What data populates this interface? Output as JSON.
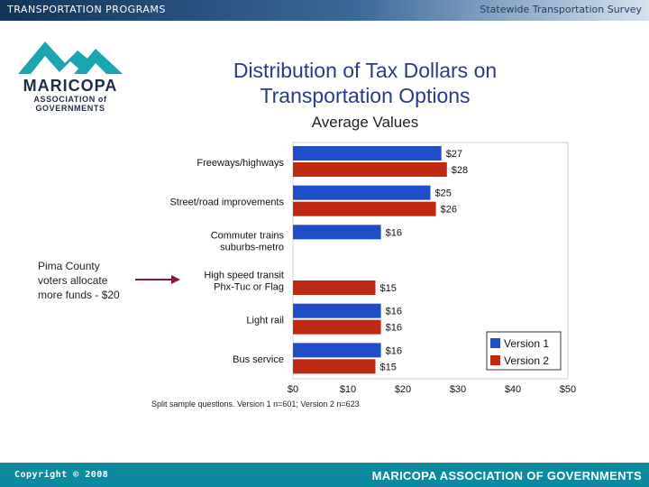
{
  "header": {
    "left": "TRANSPORTATION PROGRAMS",
    "right": "Statewide Transportation Survey"
  },
  "footer": {
    "copyright": "Copyright © 2008",
    "org": "MARICOPA ASSOCIATION OF GOVERNMENTS"
  },
  "logo": {
    "line1": "MARICOPA",
    "line2": "ASSOCIATION of",
    "line3": "GOVERNMENTS"
  },
  "note": "Pima County voters allocate more funds - $20",
  "footnote": "Split sample questions. Version 1 n=601; Version 2 n=623",
  "colors": {
    "version1": "#1f4fc8",
    "version2": "#c02a12"
  },
  "chart_data": {
    "type": "bar",
    "orientation": "horizontal",
    "title": "Distribution of Tax Dollars on Transportation Options",
    "subtitle": "Average Values",
    "categories": [
      [
        "Freeways/highways"
      ],
      [
        "Street/road improvements"
      ],
      [
        "Commuter trains",
        "suburbs-metro"
      ],
      [
        "High speed transit",
        "Phx-Tuc or Flag"
      ],
      [
        "Light rail"
      ],
      [
        "Bus service"
      ]
    ],
    "series": [
      {
        "name": "Version 1",
        "values": [
          27,
          25,
          16,
          null,
          16,
          16
        ],
        "labels": [
          "$27",
          "$25",
          "$16",
          "",
          "$16",
          "$16"
        ]
      },
      {
        "name": "Version 2",
        "values": [
          28,
          26,
          null,
          15,
          16,
          15
        ],
        "labels": [
          "$28",
          "$26",
          "",
          "$15",
          "$16",
          "$15"
        ]
      }
    ],
    "xlim": [
      0,
      50
    ],
    "xticks": [
      0,
      10,
      20,
      30,
      40,
      50
    ],
    "xticklabels": [
      "$0",
      "$10",
      "$20",
      "$30",
      "$40",
      "$50"
    ],
    "legend": "bottom-right"
  }
}
